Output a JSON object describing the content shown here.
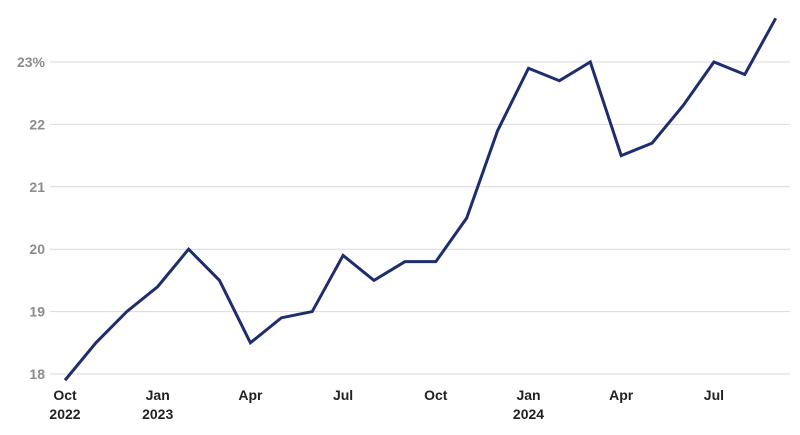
{
  "chart_data": {
    "type": "line",
    "title": "",
    "xlabel": "",
    "ylabel": "",
    "y_unit": "%",
    "ylim": [
      18,
      23
    ],
    "yticks": [
      {
        "value": 23,
        "label": "23%"
      },
      {
        "value": 22,
        "label": "22"
      },
      {
        "value": 21,
        "label": "21"
      },
      {
        "value": 20,
        "label": "20"
      },
      {
        "value": 19,
        "label": "19"
      },
      {
        "value": 18,
        "label": "18"
      }
    ],
    "xticks": [
      {
        "at": "2022-10",
        "line1": "Oct",
        "line2": "2022"
      },
      {
        "at": "2023-01",
        "line1": "Jan",
        "line2": "2023"
      },
      {
        "at": "2023-04",
        "line1": "Apr",
        "line2": ""
      },
      {
        "at": "2023-07",
        "line1": "Jul",
        "line2": ""
      },
      {
        "at": "2023-10",
        "line1": "Oct",
        "line2": ""
      },
      {
        "at": "2024-01",
        "line1": "Jan",
        "line2": "2024"
      },
      {
        "at": "2024-04",
        "line1": "Apr",
        "line2": ""
      },
      {
        "at": "2024-07",
        "line1": "Jul",
        "line2": ""
      }
    ],
    "grid": true,
    "colors": {
      "line": "#1f2d6e",
      "grid": "#d9d9d9"
    },
    "series": [
      {
        "x": [
          "2022-10",
          "2022-11",
          "2022-12",
          "2023-01",
          "2023-02",
          "2023-03",
          "2023-04",
          "2023-05",
          "2023-06",
          "2023-07",
          "2023-08",
          "2023-09",
          "2023-10",
          "2023-11",
          "2023-12",
          "2024-01",
          "2024-02",
          "2024-03",
          "2024-04",
          "2024-05",
          "2024-06",
          "2024-07",
          "2024-08",
          "2024-09"
        ],
        "values": [
          17.9,
          18.5,
          19.0,
          19.4,
          20.0,
          19.5,
          18.5,
          18.9,
          19.0,
          19.9,
          19.5,
          19.8,
          19.8,
          20.5,
          21.9,
          22.9,
          22.7,
          23.0,
          21.5,
          21.7,
          22.3,
          23.0,
          22.8,
          23.7
        ]
      }
    ]
  }
}
